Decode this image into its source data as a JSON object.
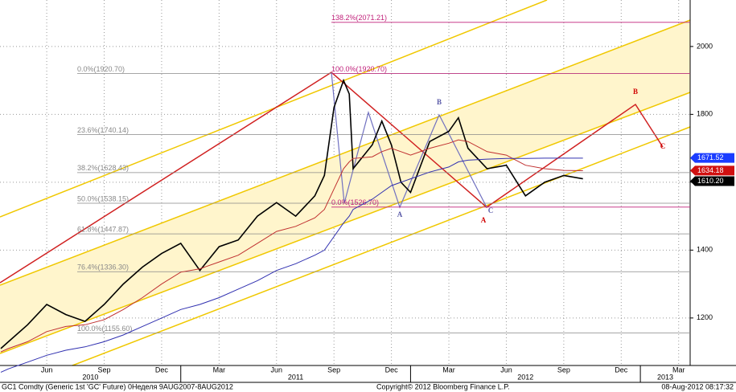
{
  "chart_data": {
    "type": "line",
    "x": [
      2.6,
      3,
      4,
      5,
      6,
      7,
      8,
      9,
      10,
      11,
      12,
      13,
      14,
      15,
      16,
      17,
      18,
      19,
      19.5,
      20,
      20.5,
      20.8,
      21,
      22,
      22.5,
      23,
      23.5,
      24,
      25,
      26,
      26.5,
      27,
      28,
      29,
      30,
      31,
      32,
      33
    ],
    "series": [
      {
        "color": "#000000",
        "values": [
          1110,
          1130,
          1180,
          1240,
          1210,
          1190,
          1240,
          1300,
          1350,
          1390,
          1420,
          1340,
          1410,
          1430,
          1500,
          1540,
          1500,
          1560,
          1620,
          1820,
          1900,
          1860,
          1640,
          1710,
          1780,
          1710,
          1600,
          1570,
          1720,
          1750,
          1790,
          1700,
          1640,
          1650,
          1560,
          1600,
          1620,
          1610
        ]
      },
      {
        "color": "#c03030",
        "values": [
          1100,
          1110,
          1130,
          1160,
          1175,
          1180,
          1195,
          1225,
          1260,
          1300,
          1335,
          1345,
          1365,
          1385,
          1420,
          1455,
          1470,
          1495,
          1520,
          1580,
          1640,
          1660,
          1670,
          1675,
          1690,
          1700,
          1690,
          1680,
          1700,
          1715,
          1725,
          1720,
          1690,
          1680,
          1650,
          1640,
          1635,
          1634
        ]
      },
      {
        "color": "#3030b0",
        "values": [
          1040,
          1050,
          1070,
          1090,
          1105,
          1115,
          1130,
          1150,
          1175,
          1200,
          1225,
          1240,
          1260,
          1285,
          1310,
          1340,
          1360,
          1385,
          1400,
          1440,
          1480,
          1500,
          1520,
          1550,
          1570,
          1590,
          1600,
          1610,
          1630,
          1645,
          1660,
          1665,
          1668,
          1670,
          1670,
          1671,
          1671,
          1671
        ]
      }
    ],
    "xlim": [
      2.56,
      38.6
    ],
    "xticks": [
      {
        "value": 5,
        "label": "Jun"
      },
      {
        "value": 8,
        "label": "Sep"
      },
      {
        "value": 11,
        "label": "Dec"
      },
      {
        "value": 14,
        "label": "Mar"
      },
      {
        "value": 17,
        "label": "Jun"
      },
      {
        "value": 20,
        "label": "Sep"
      },
      {
        "value": 23,
        "label": "Dec"
      },
      {
        "value": 26,
        "label": "Mar"
      },
      {
        "value": 29,
        "label": "Jun"
      },
      {
        "value": 32,
        "label": "Sep"
      },
      {
        "value": 35,
        "label": "Dec"
      },
      {
        "value": 38,
        "label": "Mar"
      }
    ],
    "years": [
      "2010",
      "2011",
      "2012",
      "2013"
    ],
    "ylim": [
      1060,
      2137
    ],
    "yticks": [
      1200,
      1400,
      1600,
      1800,
      2000
    ],
    "grid": true,
    "fib_left": {
      "color": "#888888",
      "levels": [
        1920.7,
        1740.14,
        1628.43,
        1538.15,
        1447.87,
        1336.3,
        1155.6
      ],
      "labels": [
        "0.0%(1920.70)",
        "23.6%(1740.14)",
        "38.2%(1628.43)",
        "50.0%(1538.15)",
        "61.8%(1447.87)",
        "76.4%(1336.30)",
        "100.0%(1155.60)"
      ]
    },
    "fib_right": {
      "color": "#c0207a",
      "levels": [
        2071.21,
        1920.7,
        1526.7
      ],
      "labels": [
        "138.2%(2071.21)",
        "100.0%(1920.70)",
        "0.0%(1526.70)"
      ]
    },
    "price_tags": {
      "values": [
        1671.52,
        1634.18,
        1610.2
      ],
      "value_labels": [
        "1671.52",
        "1634.18",
        "1610.20"
      ],
      "colors": [
        "#1a3cff",
        "#d01010",
        "#000000"
      ]
    },
    "annotations": [
      {
        "text": "A",
        "color": "#d00000"
      },
      {
        "text": "B",
        "color": "#d00000"
      },
      {
        "text": "C",
        "color": "#d00000"
      },
      {
        "text": "A",
        "color": "#5a5aa8"
      },
      {
        "text": "B",
        "color": "#5a5aa8"
      },
      {
        "text": "C",
        "color": "#5a5aa8"
      }
    ],
    "footer": {
      "left": "GC1 Comdty (Generic 1st 'GC' Future) 0Неделя 9AUG2007-8AUG2012",
      "center": "Copyright© 2012 Bloomberg Finance L.P.",
      "right": "08-Aug-2012 08:17:32"
    }
  }
}
